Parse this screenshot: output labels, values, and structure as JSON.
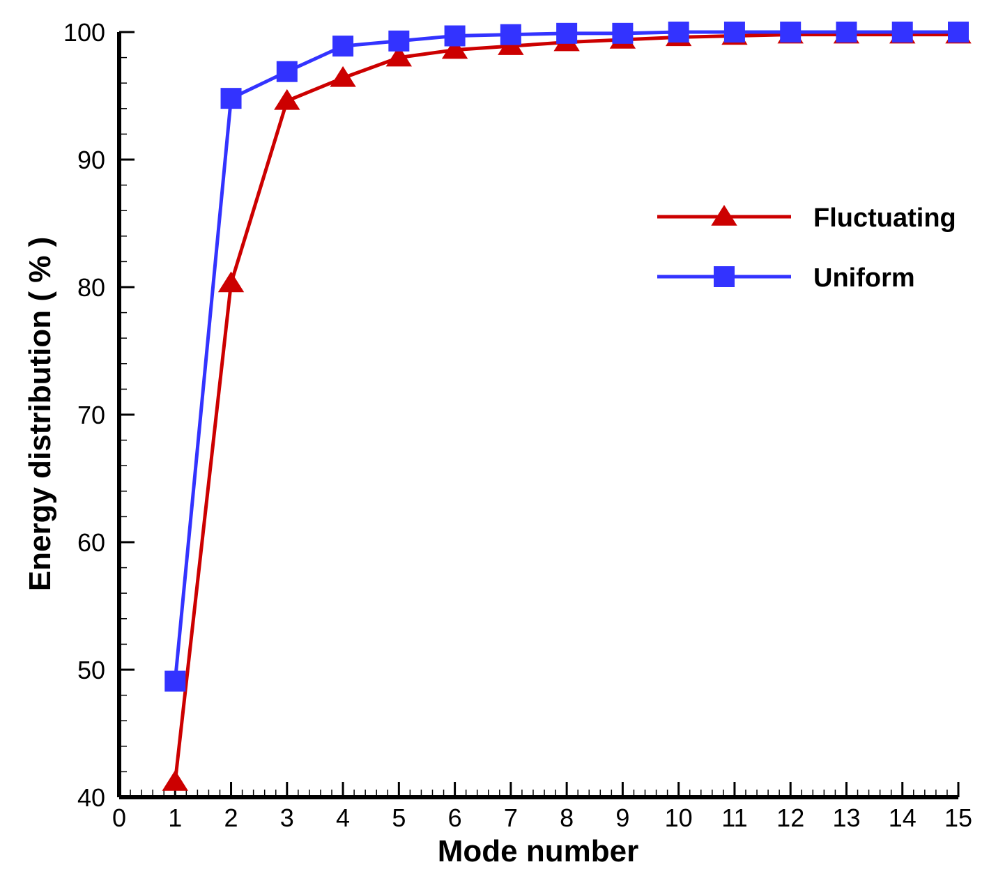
{
  "chart_data": {
    "type": "line",
    "xlabel": "Mode number",
    "ylabel": "Energy distribution ( % )",
    "xlim": [
      0,
      15
    ],
    "ylim": [
      40,
      100
    ],
    "xticks": [
      0,
      1,
      2,
      3,
      4,
      5,
      6,
      7,
      8,
      9,
      10,
      11,
      12,
      13,
      14,
      15
    ],
    "yticks": [
      40,
      50,
      60,
      70,
      80,
      90,
      100
    ],
    "grid": false,
    "legend_position": "right",
    "series": [
      {
        "name": "Fluctuating",
        "color": "#cc0000",
        "marker": "triangle",
        "x": [
          1,
          2,
          3,
          4,
          5,
          6,
          7,
          8,
          9,
          10,
          11,
          12,
          13,
          14,
          15
        ],
        "y": [
          41.2,
          80.3,
          94.6,
          96.4,
          98.0,
          98.6,
          98.9,
          99.2,
          99.4,
          99.6,
          99.7,
          99.8,
          99.8,
          99.8,
          99.8
        ]
      },
      {
        "name": "Uniform",
        "color": "#3333ff",
        "marker": "square",
        "x": [
          1,
          2,
          3,
          4,
          5,
          6,
          7,
          8,
          9,
          10,
          11,
          12,
          13,
          14,
          15
        ],
        "y": [
          49.1,
          94.8,
          96.9,
          98.9,
          99.3,
          99.7,
          99.8,
          99.9,
          99.9,
          100.0,
          100.0,
          100.0,
          100.0,
          100.0,
          100.0
        ]
      }
    ]
  }
}
